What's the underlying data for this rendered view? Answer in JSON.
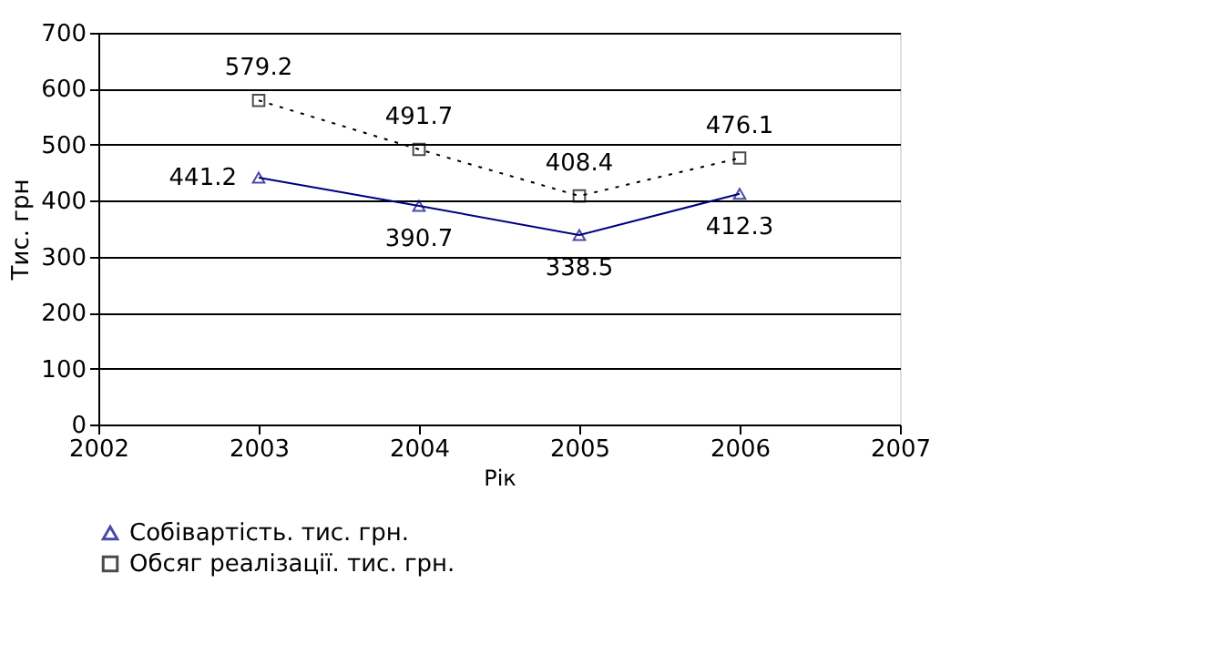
{
  "chart_data": {
    "type": "line",
    "xlabel": "Рік",
    "ylabel": "Тис. грн",
    "x": [
      2003,
      2004,
      2005,
      2006
    ],
    "series": [
      {
        "name": "Собівартість. тис. грн.",
        "color": "#000080",
        "values": [
          441.2,
          390.7,
          338.5,
          412.3
        ],
        "marker": "triangle",
        "line_style": "solid"
      },
      {
        "name": "Обсяг реалізації. тис. грн.",
        "color": "#000000",
        "values": [
          579.2,
          491.7,
          408.4,
          476.1
        ],
        "marker": "square",
        "line_style": "dotted"
      }
    ],
    "xlim": [
      2002,
      2007
    ],
    "xticks": [
      2002,
      2003,
      2004,
      2005,
      2006,
      2007
    ],
    "ylim": [
      0,
      700
    ],
    "yticks": [
      0,
      100,
      200,
      300,
      400,
      500,
      600,
      700
    ],
    "grid": "y",
    "legend": "bottom",
    "data_labels": true
  }
}
